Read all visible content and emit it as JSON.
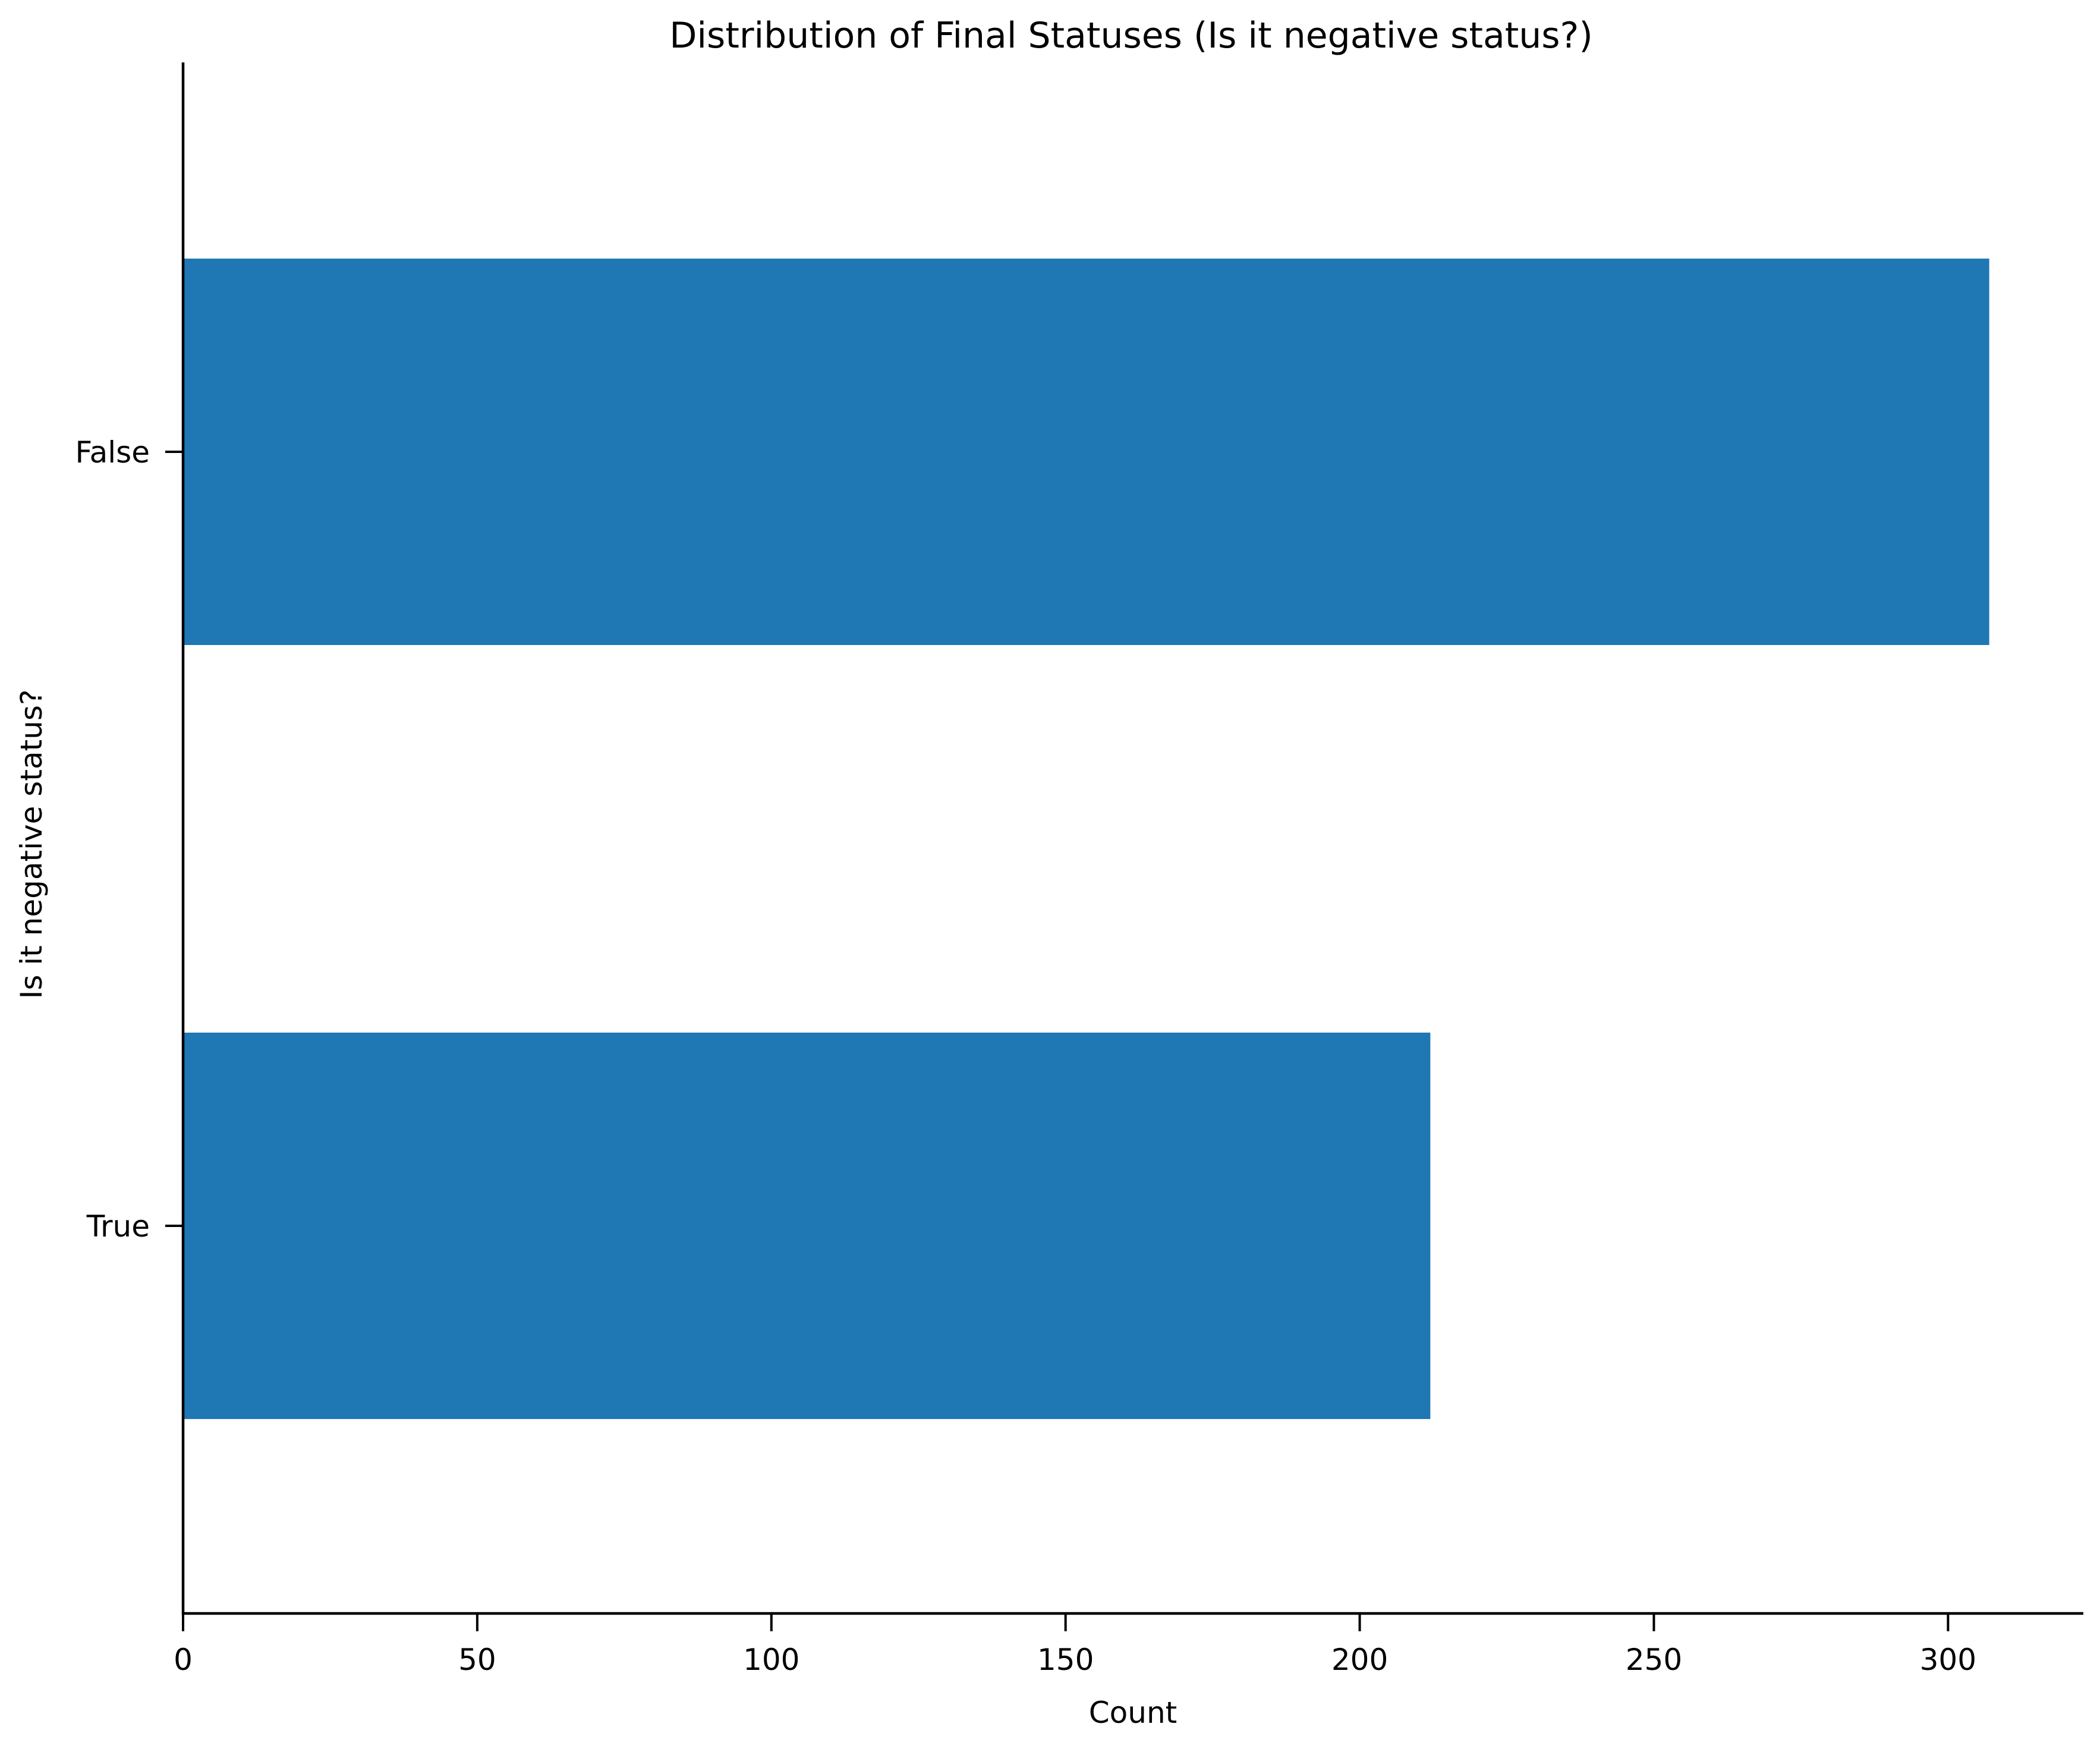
{
  "chart_data": {
    "type": "bar",
    "orientation": "horizontal",
    "title": "Distribution of Final Statuses (Is it negative status?)",
    "xlabel": "Count",
    "ylabel": "Is it negative status?",
    "categories": [
      "False",
      "True"
    ],
    "values": [
      307,
      212
    ],
    "xlim": [
      0,
      323
    ],
    "xticks": [
      0,
      50,
      100,
      150,
      200,
      250,
      300
    ],
    "grid": false,
    "legend": "none",
    "bar_color": "#1f77b4"
  }
}
